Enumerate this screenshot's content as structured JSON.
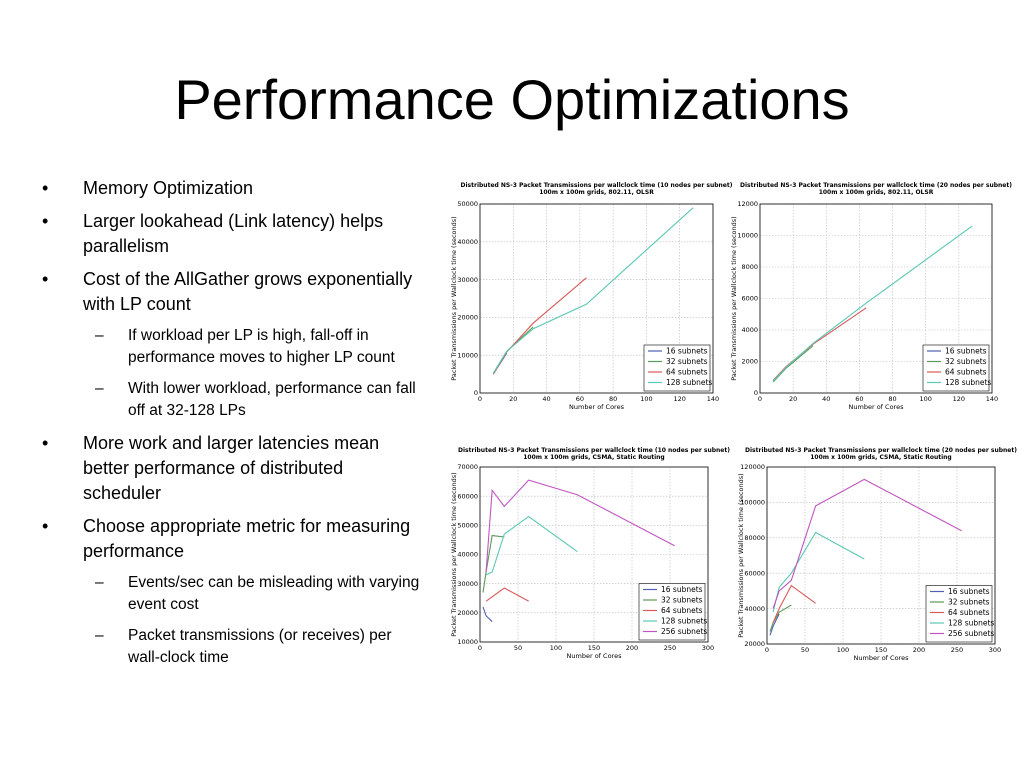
{
  "slide": {
    "title": "Performance Optimizations",
    "bullets": [
      {
        "text": "Memory Optimization",
        "subs": []
      },
      {
        "text": "Larger lookahead (Link latency) helps parallelism",
        "subs": []
      },
      {
        "text": "Cost of the AllGather grows exponentially with LP count",
        "subs": [
          "If workload per LP is high, fall-off in performance moves to higher LP count",
          "With lower workload, performance can fall off at 32-128 LPs"
        ]
      },
      {
        "text": "More work and larger latencies mean better performance of distributed scheduler",
        "subs": []
      },
      {
        "text": "Choose appropriate metric for measuring performance",
        "subs": [
          "Events/sec can be misleading with varying event cost",
          "Packet transmissions (or receives) per wall-clock time"
        ]
      }
    ]
  },
  "colors": {
    "s16": "#4f5fb3",
    "s32": "#5a9a5a",
    "s64": "#d95a5a",
    "s128": "#5ac8b4",
    "s256": "#c055c0"
  },
  "chart_data": [
    {
      "type": "line",
      "title": "Distributed NS-3 Packet Transmissions per wallclock time (10 nodes per subnet)",
      "subtitle": "100m x 100m grids, 802.11, OLSR",
      "xlabel": "Number of Cores",
      "ylabel": "Packet Transmissions per Wallclock time (seconds)",
      "xlim": [
        0,
        140
      ],
      "ylim": [
        0,
        50000
      ],
      "xticks": [
        0,
        20,
        40,
        60,
        80,
        100,
        120,
        140
      ],
      "yticks": [
        0,
        10000,
        20000,
        30000,
        40000,
        50000
      ],
      "grid": true,
      "legend": "bottom-right",
      "series": [
        {
          "name": "16 subnets",
          "x": [
            8,
            16
          ],
          "y": [
            5000,
            10500
          ]
        },
        {
          "name": "32 subnets",
          "x": [
            8,
            16,
            32
          ],
          "y": [
            5200,
            11000,
            17500
          ]
        },
        {
          "name": "64 subnets",
          "x": [
            8,
            16,
            32,
            64
          ],
          "y": [
            5000,
            10800,
            18500,
            30500
          ]
        },
        {
          "name": "128 subnets",
          "x": [
            8,
            16,
            32,
            64,
            128
          ],
          "y": [
            5200,
            11000,
            17000,
            23500,
            49000
          ]
        }
      ]
    },
    {
      "type": "line",
      "title": "Distributed NS-3 Packet Transmissions per wallclock time (20 nodes per subnet)",
      "subtitle": "100m x 100m grids, 802.11, OLSR",
      "xlabel": "Number of Cores",
      "ylabel": "Packet Transmissions per Wallclock time (seconds)",
      "xlim": [
        0,
        140
      ],
      "ylim": [
        0,
        12000
      ],
      "xticks": [
        0,
        20,
        40,
        60,
        80,
        100,
        120,
        140
      ],
      "yticks": [
        0,
        2000,
        4000,
        6000,
        8000,
        10000,
        12000
      ],
      "grid": true,
      "legend": "bottom-right",
      "series": [
        {
          "name": "16 subnets",
          "x": [
            8,
            16
          ],
          "y": [
            800,
            1700
          ]
        },
        {
          "name": "32 subnets",
          "x": [
            8,
            16,
            32
          ],
          "y": [
            700,
            1600,
            3000
          ]
        },
        {
          "name": "64 subnets",
          "x": [
            8,
            16,
            32,
            64
          ],
          "y": [
            800,
            1700,
            3100,
            5400
          ]
        },
        {
          "name": "128 subnets",
          "x": [
            8,
            16,
            32,
            64,
            128
          ],
          "y": [
            750,
            1650,
            3150,
            5700,
            10600
          ]
        }
      ]
    },
    {
      "type": "line",
      "title": "Distributed NS-3 Packet Transmissions per wallclock time (10 nodes per subnet)",
      "subtitle": "100m x 100m grids, CSMA, Static Routing",
      "xlabel": "Number of Cores",
      "ylabel": "Packet Transmissions per Wallclock time (seconds)",
      "xlim": [
        0,
        300
      ],
      "ylim": [
        10000,
        70000
      ],
      "xticks": [
        0,
        50,
        100,
        150,
        200,
        250,
        300
      ],
      "yticks": [
        10000,
        20000,
        30000,
        40000,
        50000,
        60000,
        70000
      ],
      "grid": true,
      "legend": "bottom-right",
      "series": [
        {
          "name": "16 subnets",
          "x": [
            4,
            8,
            16
          ],
          "y": [
            22000,
            19000,
            17000
          ]
        },
        {
          "name": "32 subnets",
          "x": [
            4,
            8,
            16,
            32
          ],
          "y": [
            27000,
            34000,
            46500,
            46000
          ]
        },
        {
          "name": "64 subnets",
          "x": [
            8,
            16,
            32,
            64
          ],
          "y": [
            24000,
            25500,
            28500,
            24000
          ]
        },
        {
          "name": "128 subnets",
          "x": [
            8,
            16,
            32,
            64,
            128
          ],
          "y": [
            33000,
            34000,
            47000,
            53000,
            41000
          ]
        },
        {
          "name": "256 subnets",
          "x": [
            8,
            16,
            32,
            64,
            128,
            256
          ],
          "y": [
            34000,
            62000,
            56500,
            65500,
            60500,
            43000
          ]
        }
      ]
    },
    {
      "type": "line",
      "title": "Distributed NS-3 Packet Transmissions per wallclock time (20 nodes per subnet)",
      "subtitle": "100m x 100m grids, CSMA, Static Routing",
      "xlabel": "Number of Cores",
      "ylabel": "Packet Transmissions per Wallclock time (seconds)",
      "xlim": [
        0,
        300
      ],
      "ylim": [
        20000,
        120000
      ],
      "xticks": [
        0,
        50,
        100,
        150,
        200,
        250,
        300
      ],
      "yticks": [
        20000,
        40000,
        60000,
        80000,
        100000,
        120000
      ],
      "grid": true,
      "legend": "bottom-right",
      "series": [
        {
          "name": "16 subnets",
          "x": [
            4,
            8,
            16
          ],
          "y": [
            25000,
            30000,
            37000
          ]
        },
        {
          "name": "32 subnets",
          "x": [
            4,
            8,
            16,
            32
          ],
          "y": [
            27000,
            32000,
            38000,
            42000
          ]
        },
        {
          "name": "64 subnets",
          "x": [
            8,
            16,
            32,
            64
          ],
          "y": [
            32000,
            40000,
            53000,
            43000
          ]
        },
        {
          "name": "128 subnets",
          "x": [
            8,
            16,
            32,
            64,
            128
          ],
          "y": [
            38000,
            52000,
            60000,
            83000,
            68000
          ]
        },
        {
          "name": "256 subnets",
          "x": [
            8,
            16,
            32,
            64,
            128,
            256
          ],
          "y": [
            40000,
            50000,
            56000,
            98000,
            113000,
            84000
          ]
        }
      ]
    }
  ]
}
